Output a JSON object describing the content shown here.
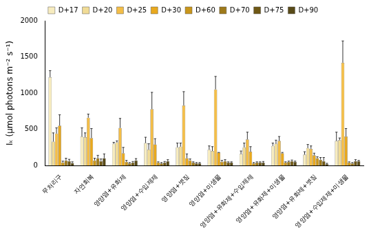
{
  "chart_data": {
    "type": "bar",
    "y_label": "Iₖ (μmol photons m⁻² s⁻¹)",
    "categories": [
      "무처리구",
      "자연회복",
      "영양염+유화제",
      "영양염+수입제제",
      "영양염+볏짚",
      "영양염+미생물",
      "영양염+유화제+수입제제",
      "영양염+유화제+미생물",
      "영양염+유화제+볏짚",
      "영양염+수입제제+미생물"
    ],
    "series": [
      {
        "name": "D+17",
        "color": "#f7ecbf",
        "values": [
          1220,
          400,
          300,
          310,
          250,
          220,
          160,
          270,
          150,
          340
        ],
        "errors": [
          90,
          120,
          20,
          80,
          60,
          50,
          40,
          40,
          40,
          120
        ]
      },
      {
        "name": "D+20",
        "color": "#f1dc96",
        "values": [
          330,
          390,
          320,
          220,
          260,
          200,
          250,
          300,
          240,
          350
        ],
        "errors": [
          120,
          60,
          20,
          80,
          50,
          60,
          60,
          50,
          50,
          30
        ]
      },
      {
        "name": "D+25",
        "color": "#f4be48",
        "values": [
          440,
          660,
          520,
          780,
          830,
          1050,
          360,
          340,
          230,
          1420
        ],
        "errors": [
          80,
          50,
          130,
          230,
          190,
          180,
          100,
          60,
          40,
          300
        ]
      },
      {
        "name": "D+30",
        "color": "#e9a91e",
        "values": [
          550,
          380,
          170,
          290,
          100,
          180,
          190,
          170,
          140,
          400
        ],
        "errors": [
          150,
          130,
          80,
          80,
          60,
          0,
          70,
          10,
          30,
          110
        ]
      },
      {
        "name": "D+60",
        "color": "#c9961c",
        "values": [
          40,
          70,
          50,
          40,
          70,
          50,
          30,
          40,
          100,
          40
        ],
        "errors": [
          20,
          30,
          20,
          10,
          20,
          20,
          10,
          10,
          20,
          10
        ]
      },
      {
        "name": "D+70",
        "color": "#9e7a1a",
        "values": [
          70,
          100,
          30,
          30,
          40,
          60,
          40,
          50,
          80,
          30
        ],
        "errors": [
          30,
          40,
          10,
          10,
          10,
          20,
          10,
          10,
          30,
          10
        ]
      },
      {
        "name": "D+75",
        "color": "#6f5815",
        "values": [
          60,
          60,
          40,
          40,
          30,
          40,
          40,
          60,
          60,
          60
        ],
        "errors": [
          25,
          30,
          15,
          15,
          10,
          10,
          10,
          15,
          50,
          20
        ]
      },
      {
        "name": "D+90",
        "color": "#584a18",
        "values": [
          35,
          100,
          70,
          60,
          30,
          40,
          40,
          50,
          20,
          60
        ],
        "errors": [
          15,
          60,
          25,
          20,
          10,
          10,
          15,
          10,
          10,
          10
        ]
      }
    ],
    "ylim": [
      0,
      2000
    ],
    "yticks": [
      0,
      500,
      1000,
      1500,
      2000
    ],
    "grid": false,
    "legend": "top"
  }
}
